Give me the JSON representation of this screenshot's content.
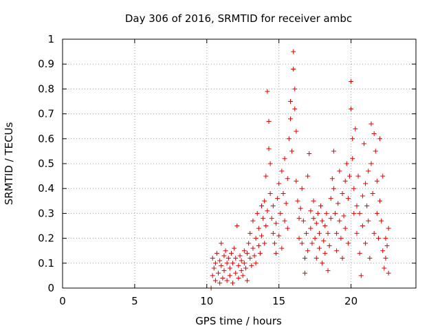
{
  "chart_data": {
    "type": "scatter",
    "title": "Day 306 of 2016, SRMTID for receiver ambc",
    "xlabel": "GPS time / hours",
    "ylabel": "SRMTID / TECUs",
    "xlim": [
      0,
      24.5
    ],
    "ylim": [
      0,
      1
    ],
    "xticks": [
      0,
      5,
      10,
      15,
      20
    ],
    "yticks": [
      0,
      0.1,
      0.2,
      0.3,
      0.4,
      0.5,
      0.6,
      0.7,
      0.8,
      0.9,
      1
    ],
    "grid": true,
    "marker": "plus",
    "color": "#e00000",
    "series": [
      {
        "name": "SRMTID",
        "points": [
          [
            10.3,
            0.0
          ],
          [
            10.4,
            0.05
          ],
          [
            10.4,
            0.12
          ],
          [
            10.5,
            0.08
          ],
          [
            10.6,
            0.03
          ],
          [
            10.6,
            0.1
          ],
          [
            10.7,
            0.14
          ],
          [
            10.8,
            0.06
          ],
          [
            10.9,
            0.11
          ],
          [
            10.9,
            0.02
          ],
          [
            11.0,
            0.18
          ],
          [
            11.0,
            0.09
          ],
          [
            11.1,
            0.04
          ],
          [
            11.2,
            0.13
          ],
          [
            11.2,
            0.07
          ],
          [
            11.3,
            0.15
          ],
          [
            11.4,
            0.1
          ],
          [
            11.4,
            0.03
          ],
          [
            11.5,
            0.12
          ],
          [
            11.6,
            0.08
          ],
          [
            11.6,
            0.05
          ],
          [
            11.7,
            0.14
          ],
          [
            11.8,
            0.02
          ],
          [
            11.8,
            0.1
          ],
          [
            11.9,
            0.16
          ],
          [
            12.0,
            0.06
          ],
          [
            12.0,
            0.12
          ],
          [
            12.1,
            0.25
          ],
          [
            12.2,
            0.09
          ],
          [
            12.2,
            0.04
          ],
          [
            12.3,
            0.13
          ],
          [
            12.4,
            0.07
          ],
          [
            12.4,
            0.11
          ],
          [
            12.5,
            0.05
          ],
          [
            12.6,
            0.15
          ],
          [
            12.6,
            0.1
          ],
          [
            12.7,
            0.08
          ],
          [
            12.8,
            0.14
          ],
          [
            12.8,
            0.03
          ],
          [
            12.9,
            0.18
          ],
          [
            13.0,
            0.12
          ],
          [
            13.0,
            0.22
          ],
          [
            13.1,
            0.09
          ],
          [
            13.2,
            0.16
          ],
          [
            13.2,
            0.27
          ],
          [
            13.3,
            0.13
          ],
          [
            13.4,
            0.2
          ],
          [
            13.4,
            0.1
          ],
          [
            13.5,
            0.3
          ],
          [
            13.6,
            0.17
          ],
          [
            13.6,
            0.24
          ],
          [
            13.7,
            0.14
          ],
          [
            13.8,
            0.33
          ],
          [
            13.8,
            0.21
          ],
          [
            13.9,
            0.28
          ],
          [
            14.0,
            0.18
          ],
          [
            14.0,
            0.35
          ],
          [
            14.1,
            0.25
          ],
          [
            14.1,
            0.45
          ],
          [
            14.2,
            0.31
          ],
          [
            14.2,
            0.79
          ],
          [
            14.3,
            0.67
          ],
          [
            14.3,
            0.56
          ],
          [
            14.4,
            0.5
          ],
          [
            14.4,
            0.38
          ],
          [
            14.5,
            0.28
          ],
          [
            14.6,
            0.22
          ],
          [
            14.6,
            0.33
          ],
          [
            14.7,
            0.18
          ],
          [
            14.8,
            0.26
          ],
          [
            14.8,
            0.14
          ],
          [
            14.9,
            0.36
          ],
          [
            15.0,
            0.21
          ],
          [
            15.0,
            0.42
          ],
          [
            15.1,
            0.3
          ],
          [
            15.2,
            0.47
          ],
          [
            15.2,
            0.16
          ],
          [
            15.3,
            0.38
          ],
          [
            15.4,
            0.27
          ],
          [
            15.4,
            0.52
          ],
          [
            15.5,
            0.34
          ],
          [
            15.6,
            0.44
          ],
          [
            15.6,
            0.24
          ],
          [
            15.7,
            0.6
          ],
          [
            15.8,
            0.75
          ],
          [
            15.8,
            0.68
          ],
          [
            15.9,
            0.55
          ],
          [
            16.0,
            0.95
          ],
          [
            16.0,
            0.88
          ],
          [
            16.1,
            0.8
          ],
          [
            16.1,
            0.72
          ],
          [
            16.2,
            0.63
          ],
          [
            16.2,
            0.43
          ],
          [
            16.3,
            0.35
          ],
          [
            16.4,
            0.28
          ],
          [
            16.4,
            0.2
          ],
          [
            16.5,
            0.32
          ],
          [
            16.6,
            0.4
          ],
          [
            16.6,
            0.18
          ],
          [
            16.7,
            0.27
          ],
          [
            16.8,
            0.12
          ],
          [
            16.8,
            0.06
          ],
          [
            16.9,
            0.22
          ],
          [
            17.0,
            0.15
          ],
          [
            17.0,
            0.45
          ],
          [
            17.1,
            0.54
          ],
          [
            17.2,
            0.31
          ],
          [
            17.2,
            0.24
          ],
          [
            17.3,
            0.18
          ],
          [
            17.4,
            0.28
          ],
          [
            17.4,
            0.35
          ],
          [
            17.5,
            0.2
          ],
          [
            17.6,
            0.12
          ],
          [
            17.6,
            0.26
          ],
          [
            17.7,
            0.3
          ],
          [
            17.8,
            0.16
          ],
          [
            17.8,
            0.22
          ],
          [
            17.9,
            0.33
          ],
          [
            18.0,
            0.1
          ],
          [
            18.0,
            0.27
          ],
          [
            18.1,
            0.19
          ],
          [
            18.2,
            0.25
          ],
          [
            18.2,
            0.14
          ],
          [
            18.3,
            0.3
          ],
          [
            18.4,
            0.07
          ],
          [
            18.4,
            0.22
          ],
          [
            18.5,
            0.17
          ],
          [
            18.6,
            0.28
          ],
          [
            18.6,
            0.36
          ],
          [
            18.7,
            0.44
          ],
          [
            18.8,
            0.55
          ],
          [
            18.8,
            0.4
          ],
          [
            18.9,
            0.3
          ],
          [
            19.0,
            0.22
          ],
          [
            19.0,
            0.15
          ],
          [
            19.1,
            0.34
          ],
          [
            19.2,
            0.27
          ],
          [
            19.2,
            0.47
          ],
          [
            19.3,
            0.2
          ],
          [
            19.4,
            0.38
          ],
          [
            19.4,
            0.12
          ],
          [
            19.5,
            0.29
          ],
          [
            19.6,
            0.43
          ],
          [
            19.6,
            0.24
          ],
          [
            19.7,
            0.5
          ],
          [
            19.8,
            0.36
          ],
          [
            19.8,
            0.18
          ],
          [
            19.9,
            0.45
          ],
          [
            20.0,
            0.83
          ],
          [
            20.0,
            0.72
          ],
          [
            20.1,
            0.6
          ],
          [
            20.1,
            0.52
          ],
          [
            20.2,
            0.4
          ],
          [
            20.2,
            0.3
          ],
          [
            20.3,
            0.64
          ],
          [
            20.4,
            0.33
          ],
          [
            20.4,
            0.22
          ],
          [
            20.5,
            0.45
          ],
          [
            20.6,
            0.14
          ],
          [
            20.6,
            0.3
          ],
          [
            20.7,
            0.05
          ],
          [
            20.8,
            0.37
          ],
          [
            20.8,
            0.25
          ],
          [
            20.9,
            0.58
          ],
          [
            21.0,
            0.42
          ],
          [
            21.0,
            0.18
          ],
          [
            21.1,
            0.33
          ],
          [
            21.2,
            0.47
          ],
          [
            21.2,
            0.27
          ],
          [
            21.3,
            0.12
          ],
          [
            21.4,
            0.66
          ],
          [
            21.4,
            0.5
          ],
          [
            21.5,
            0.38
          ],
          [
            21.6,
            0.22
          ],
          [
            21.6,
            0.62
          ],
          [
            21.7,
            0.55
          ],
          [
            21.8,
            0.43
          ],
          [
            21.8,
            0.3
          ],
          [
            21.9,
            0.2
          ],
          [
            22.0,
            0.6
          ],
          [
            22.0,
            0.35
          ],
          [
            22.1,
            0.27
          ],
          [
            22.2,
            0.15
          ],
          [
            22.2,
            0.45
          ],
          [
            22.3,
            0.08
          ],
          [
            22.4,
            0.2
          ],
          [
            22.4,
            0.12
          ],
          [
            22.5,
            0.17
          ],
          [
            22.6,
            0.06
          ],
          [
            22.6,
            0.24
          ]
        ]
      }
    ]
  }
}
